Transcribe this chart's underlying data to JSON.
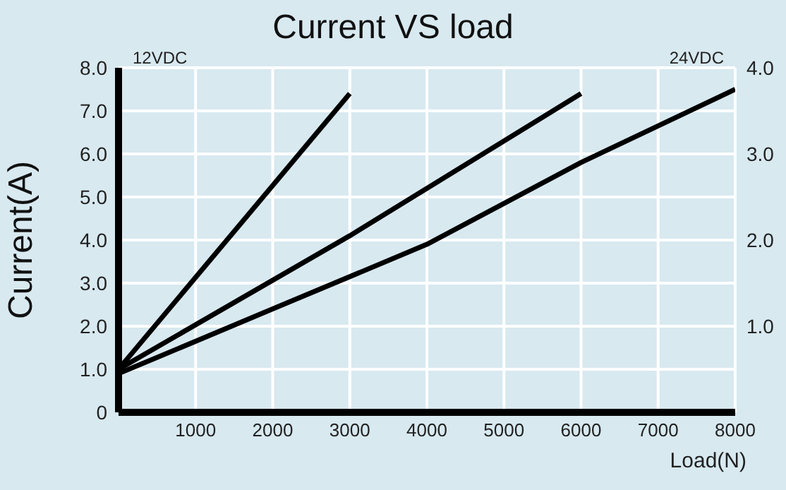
{
  "chart_data": {
    "type": "line",
    "title": "Current VS load",
    "xlabel": "Load(N)",
    "ylabel": "Current(A)",
    "annotations": [
      "12VDC",
      "24VDC"
    ],
    "series": [
      {
        "color": "#000000",
        "x": [
          0,
          3000
        ],
        "values": [
          1.0,
          7.4
        ]
      },
      {
        "color": "#000000",
        "x": [
          0,
          3000,
          6000
        ],
        "values": [
          1.0,
          4.1,
          7.4
        ]
      },
      {
        "color": "#000000",
        "x": [
          0,
          2000,
          4000,
          6000,
          8000
        ],
        "values": [
          0.9,
          2.4,
          3.9,
          5.8,
          7.5
        ]
      }
    ],
    "xlim": [
      0,
      8000
    ],
    "xticks": [
      1000,
      2000,
      3000,
      4000,
      5000,
      6000,
      7000,
      8000
    ],
    "ylim": [
      0,
      8
    ],
    "yticks": [
      {
        "value": 0,
        "label": "0"
      },
      {
        "value": 1,
        "label": "1.0"
      },
      {
        "value": 2,
        "label": "2.0"
      },
      {
        "value": 3,
        "label": "3.0"
      },
      {
        "value": 4,
        "label": "4.0"
      },
      {
        "value": 5,
        "label": "5.0"
      },
      {
        "value": 6,
        "label": "6.0"
      },
      {
        "value": 7,
        "label": "7.0"
      },
      {
        "value": 8,
        "label": "8.0"
      }
    ],
    "y2lim": [
      0,
      4
    ],
    "y2ticks": [
      {
        "value": 1,
        "label": "1.0"
      },
      {
        "value": 2,
        "label": "2.0"
      },
      {
        "value": 3,
        "label": "3.0"
      },
      {
        "value": 4,
        "label": "4.0"
      }
    ],
    "grid": true,
    "legend": false,
    "marker": "none",
    "line_style": "solid"
  }
}
